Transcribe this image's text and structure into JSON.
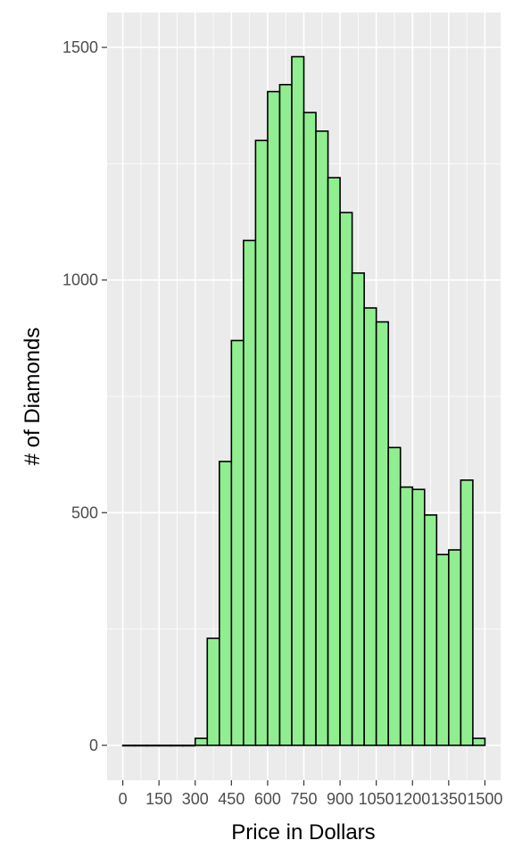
{
  "chart_data": {
    "type": "bar",
    "title": "",
    "xlabel": "Price in Dollars",
    "ylabel": "# of Diamonds",
    "bin_width": 50,
    "bin_starts": [
      0,
      50,
      100,
      150,
      200,
      250,
      300,
      350,
      400,
      450,
      500,
      550,
      600,
      650,
      700,
      750,
      800,
      850,
      900,
      950,
      1000,
      1050,
      1100,
      1150,
      1200,
      1250,
      1300,
      1350,
      1400,
      1450
    ],
    "values": [
      0,
      0,
      0,
      0,
      0,
      0,
      15,
      230,
      610,
      870,
      1085,
      1300,
      1405,
      1420,
      1480,
      1360,
      1320,
      1220,
      1145,
      1015,
      940,
      910,
      640,
      555,
      550,
      495,
      410,
      420,
      570,
      15
    ],
    "xlim": [
      -65,
      1565
    ],
    "ylim": [
      -75,
      1575
    ],
    "x_ticks": [
      0,
      150,
      300,
      450,
      600,
      750,
      900,
      1050,
      1200,
      1350,
      1500
    ],
    "x_tick_labels": [
      "0",
      "150",
      "300",
      "450",
      "600",
      "750",
      "900",
      "1050",
      "1200",
      "1350",
      "1500"
    ],
    "y_ticks": [
      0,
      500,
      1000,
      1500
    ],
    "y_tick_labels": [
      "0",
      "500",
      "1000",
      "1500"
    ],
    "y_minor_ticks": [
      250,
      750,
      1250
    ],
    "grid": true,
    "bar_fill": "#90ee90",
    "bar_stroke": "#000000",
    "panel_bg": "#ebebeb",
    "grid_color": "#ffffff"
  }
}
